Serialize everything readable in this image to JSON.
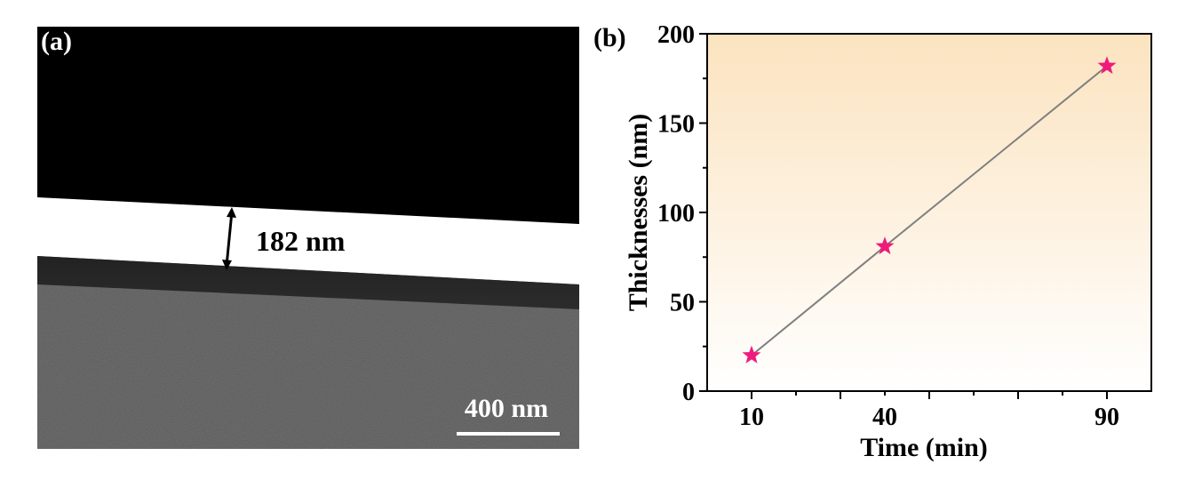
{
  "panel_a": {
    "label": "(a)",
    "measurement_label": "182 nm",
    "scale_bar_label": "400 nm"
  },
  "panel_b": {
    "label": "(b)"
  },
  "colors": {
    "marker": "#ee1b7c",
    "line": "#808080",
    "background_top": "#fbe3bf",
    "background_bottom": "#ffffff"
  },
  "chart_data": {
    "type": "line",
    "title": "",
    "xlabel": "Time (min)",
    "ylabel": "Thicknesses (nm)",
    "x": [
      10,
      40,
      90
    ],
    "series": [
      {
        "values": [
          20,
          81,
          182
        ],
        "marker": "star"
      }
    ],
    "xticks": [
      10,
      40,
      90
    ],
    "yticks": [
      0,
      50,
      100,
      150,
      200
    ],
    "xlim": [
      0,
      100
    ],
    "ylim": [
      0,
      200
    ],
    "grid": false,
    "legend": "none"
  }
}
